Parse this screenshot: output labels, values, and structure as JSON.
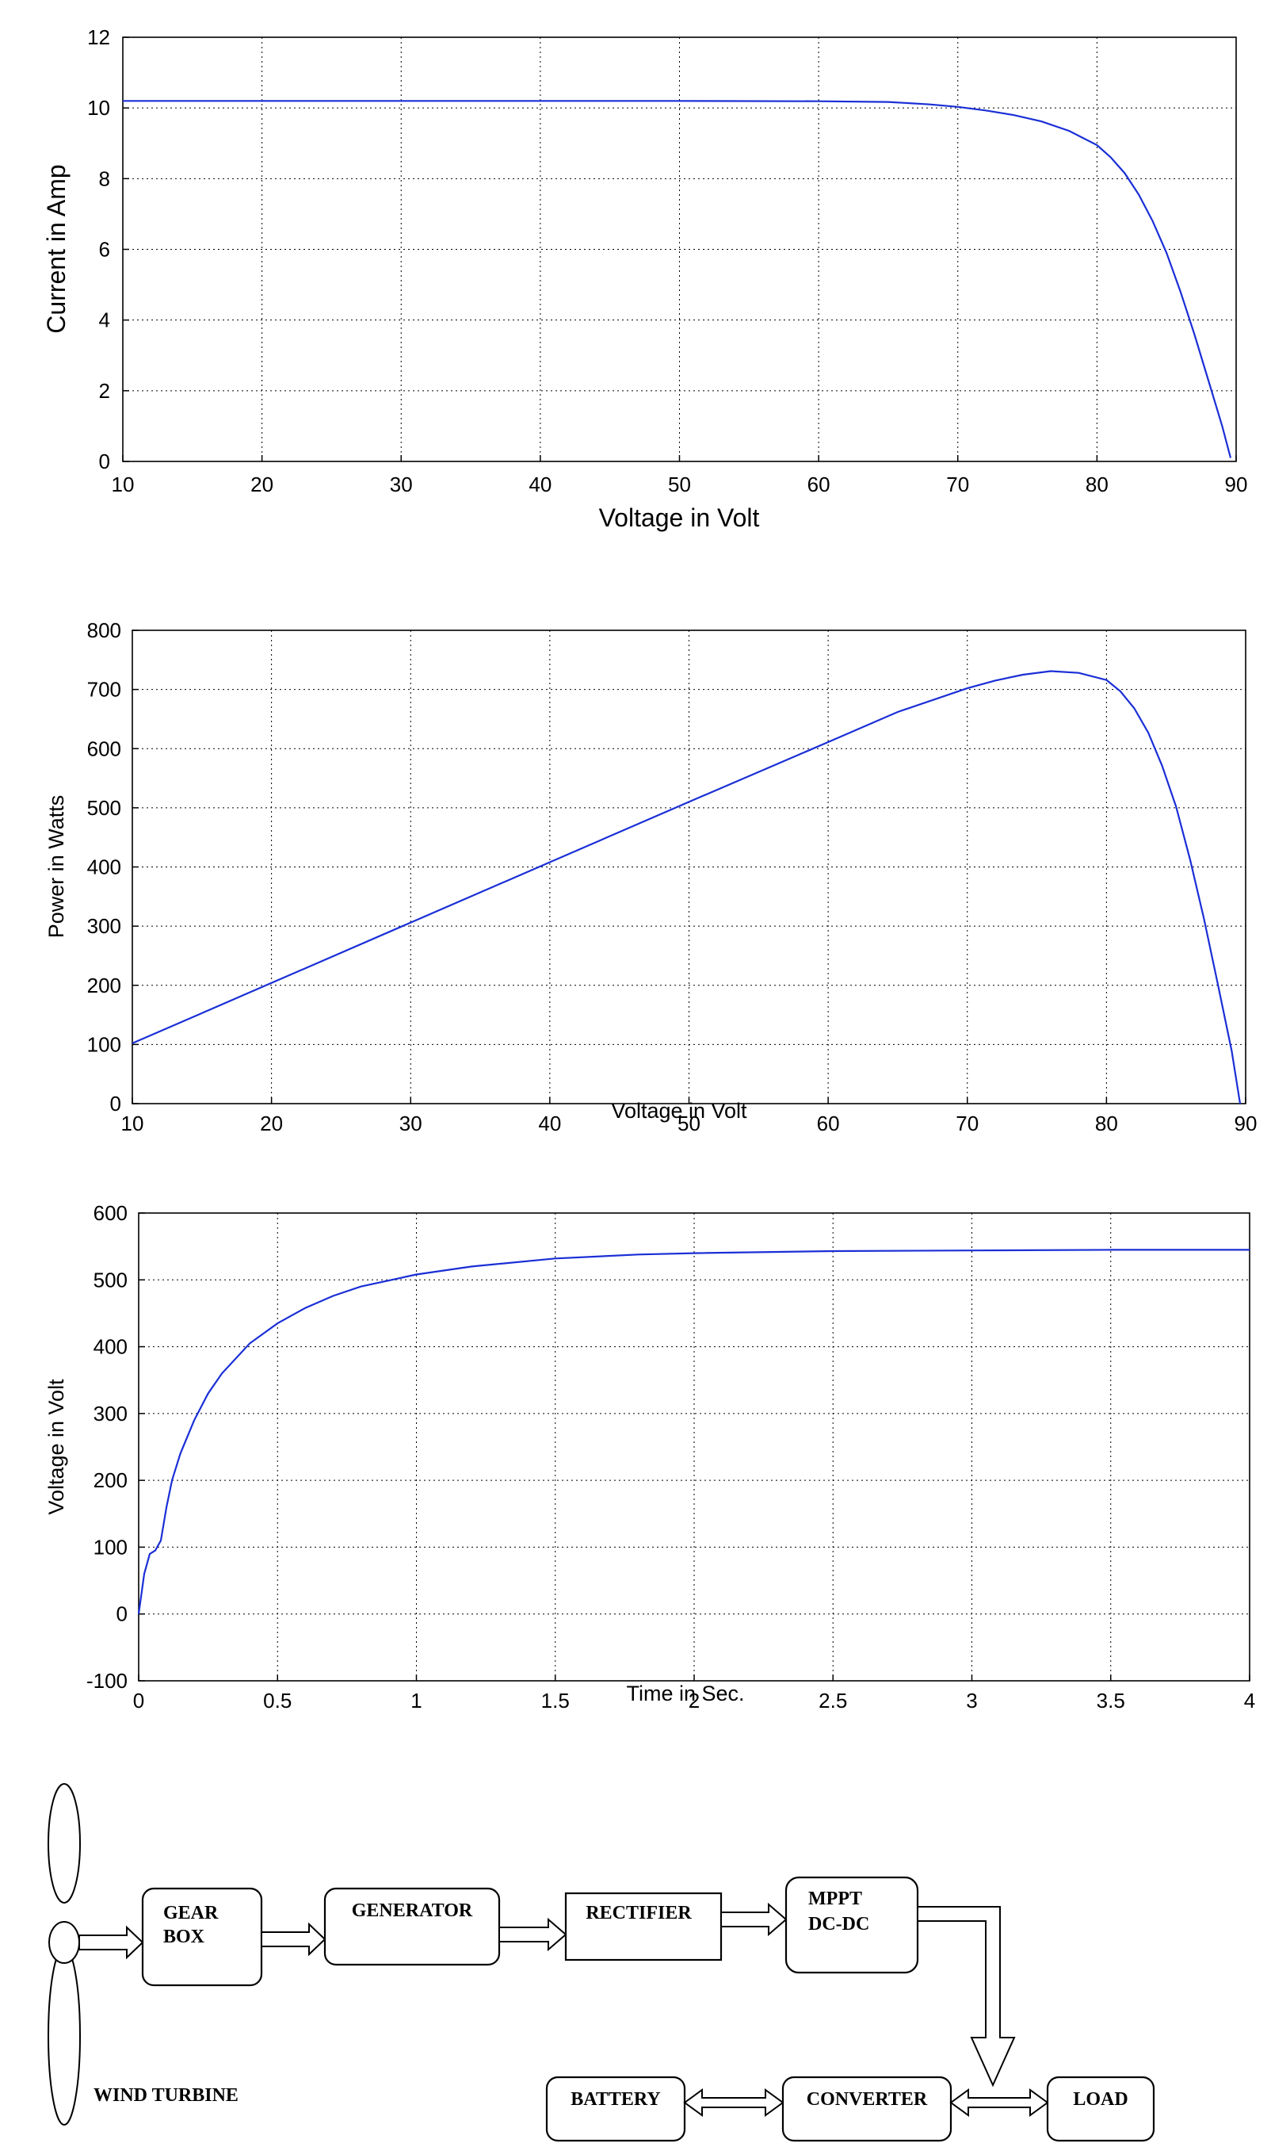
{
  "chart_data": [
    {
      "type": "line",
      "xlabel": "Voltage in Volt",
      "ylabel": "Current in Amp",
      "xlim": [
        10,
        90
      ],
      "ylim": [
        0,
        12
      ],
      "xticks": [
        10,
        20,
        30,
        40,
        50,
        60,
        70,
        80,
        90
      ],
      "yticks": [
        0,
        2,
        4,
        6,
        8,
        10,
        12
      ],
      "grid": true,
      "series": [
        {
          "color": "#1a2fd6",
          "x": [
            10,
            20,
            30,
            40,
            50,
            60,
            65,
            68,
            70,
            72,
            74,
            76,
            78,
            80,
            81,
            82,
            83,
            84,
            85,
            86,
            87,
            88,
            89,
            89.6
          ],
          "y": [
            10.2,
            10.2,
            10.2,
            10.2,
            10.2,
            10.19,
            10.17,
            10.1,
            10.03,
            9.93,
            9.8,
            9.62,
            9.35,
            8.95,
            8.6,
            8.15,
            7.55,
            6.8,
            5.9,
            4.8,
            3.6,
            2.3,
            1.0,
            0.1
          ]
        }
      ]
    },
    {
      "type": "line",
      "xlabel": "Voltage in Volt",
      "ylabel": "Power in Watts",
      "xlim": [
        10,
        90
      ],
      "ylim": [
        0,
        800
      ],
      "xticks": [
        10,
        20,
        30,
        40,
        50,
        60,
        70,
        80,
        90
      ],
      "yticks": [
        0,
        100,
        200,
        300,
        400,
        500,
        600,
        700,
        800
      ],
      "grid": true,
      "series": [
        {
          "color": "#1a2fd6",
          "x": [
            10,
            20,
            30,
            40,
            50,
            60,
            65,
            70,
            72,
            74,
            76,
            78,
            80,
            81,
            82,
            83,
            84,
            85,
            86,
            87,
            88,
            89,
            89.6
          ],
          "y": [
            102,
            204,
            306,
            408,
            510,
            611,
            662,
            702,
            715,
            725,
            731,
            728,
            716,
            697,
            668,
            627,
            571,
            502,
            413,
            313,
            202,
            89,
            0
          ]
        }
      ]
    },
    {
      "type": "line",
      "xlabel": "Time in Sec.",
      "ylabel": "Voltage in Volt",
      "xlim": [
        0,
        4
      ],
      "ylim": [
        -100,
        600
      ],
      "xticks": [
        0,
        0.5,
        1,
        1.5,
        2,
        2.5,
        3,
        3.5,
        4
      ],
      "yticks": [
        -100,
        0,
        100,
        200,
        300,
        400,
        500,
        600
      ],
      "grid": true,
      "series": [
        {
          "color": "#1a2fd6",
          "x": [
            0,
            0.02,
            0.04,
            0.06,
            0.08,
            0.1,
            0.12,
            0.15,
            0.2,
            0.25,
            0.3,
            0.4,
            0.5,
            0.6,
            0.7,
            0.8,
            1.0,
            1.2,
            1.5,
            1.8,
            2.0,
            2.5,
            3.0,
            3.5,
            4.0
          ],
          "y": [
            0,
            60,
            90,
            95,
            110,
            160,
            200,
            240,
            290,
            330,
            360,
            405,
            435,
            458,
            476,
            490,
            508,
            520,
            532,
            538,
            540,
            543,
            544,
            545,
            545
          ]
        }
      ]
    }
  ],
  "diagram": {
    "wind_turbine": "WIND TURBINE",
    "gear_box_line1": "GEAR",
    "gear_box_line2": "BOX",
    "generator": "GENERATOR",
    "rectifier": "RECTIFIER",
    "mppt_line1": "MPPT",
    "mppt_line2": "DC-DC",
    "battery": "BATTERY",
    "converter": "CONVERTER",
    "load": "LOAD"
  }
}
